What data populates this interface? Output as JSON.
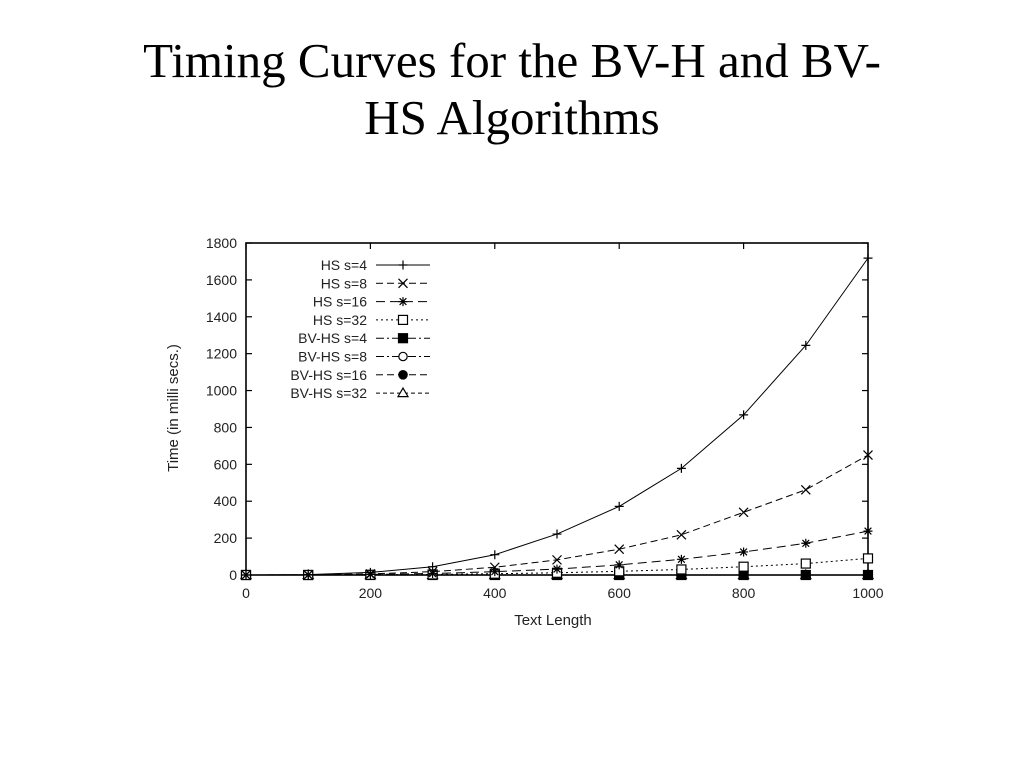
{
  "slide": {
    "title_line1": "Timing Curves for the BV-H and BV-",
    "title_line2": "HS Algorithms"
  },
  "chart_data": {
    "type": "line",
    "title": "",
    "xlabel": "Text Length",
    "ylabel": "Time (in milli secs.)",
    "xlim": [
      0,
      1000
    ],
    "ylim": [
      0,
      1800
    ],
    "x_ticks": [
      0,
      200,
      400,
      600,
      800,
      1000
    ],
    "y_ticks": [
      0,
      200,
      400,
      600,
      800,
      1000,
      1200,
      1400,
      1600,
      1800
    ],
    "grid": false,
    "legend_position": "top-left",
    "x": [
      0,
      100,
      200,
      300,
      400,
      500,
      600,
      700,
      800,
      900,
      1000
    ],
    "series": [
      {
        "name": "HS s=4",
        "marker": "plus",
        "dash": "solid",
        "values": [
          0,
          2,
          14,
          45,
          110,
          222,
          372,
          578,
          868,
          1245,
          1718
        ]
      },
      {
        "name": "HS s=8",
        "marker": "cross",
        "dash": "dashed",
        "values": [
          0,
          1,
          6,
          18,
          42,
          82,
          140,
          218,
          340,
          462,
          650
        ]
      },
      {
        "name": "HS s=16",
        "marker": "star",
        "dash": "dashed-long",
        "values": [
          0,
          0,
          3,
          8,
          18,
          32,
          55,
          85,
          125,
          172,
          238
        ]
      },
      {
        "name": "HS s=32",
        "marker": "open-square",
        "dash": "dotted",
        "values": [
          0,
          0,
          1,
          3,
          7,
          12,
          20,
          30,
          45,
          62,
          90
        ]
      },
      {
        "name": "BV-HS s=4",
        "marker": "filled-square",
        "dash": "dash-dot",
        "values": [
          0,
          0,
          0,
          0,
          0,
          0,
          0,
          0,
          0,
          0,
          0
        ]
      },
      {
        "name": "BV-HS s=8",
        "marker": "open-circle",
        "dash": "dash-dot",
        "values": [
          0,
          0,
          0,
          0,
          0,
          0,
          0,
          0,
          0,
          0,
          0
        ]
      },
      {
        "name": "BV-HS s=16",
        "marker": "filled-circle",
        "dash": "dashed",
        "values": [
          0,
          0,
          0,
          0,
          0,
          0,
          0,
          0,
          0,
          0,
          0
        ]
      },
      {
        "name": "BV-HS s=32",
        "marker": "triangle",
        "dash": "dashed-short",
        "values": [
          0,
          0,
          0,
          0,
          0,
          0,
          0,
          0,
          0,
          0,
          0
        ]
      }
    ]
  }
}
